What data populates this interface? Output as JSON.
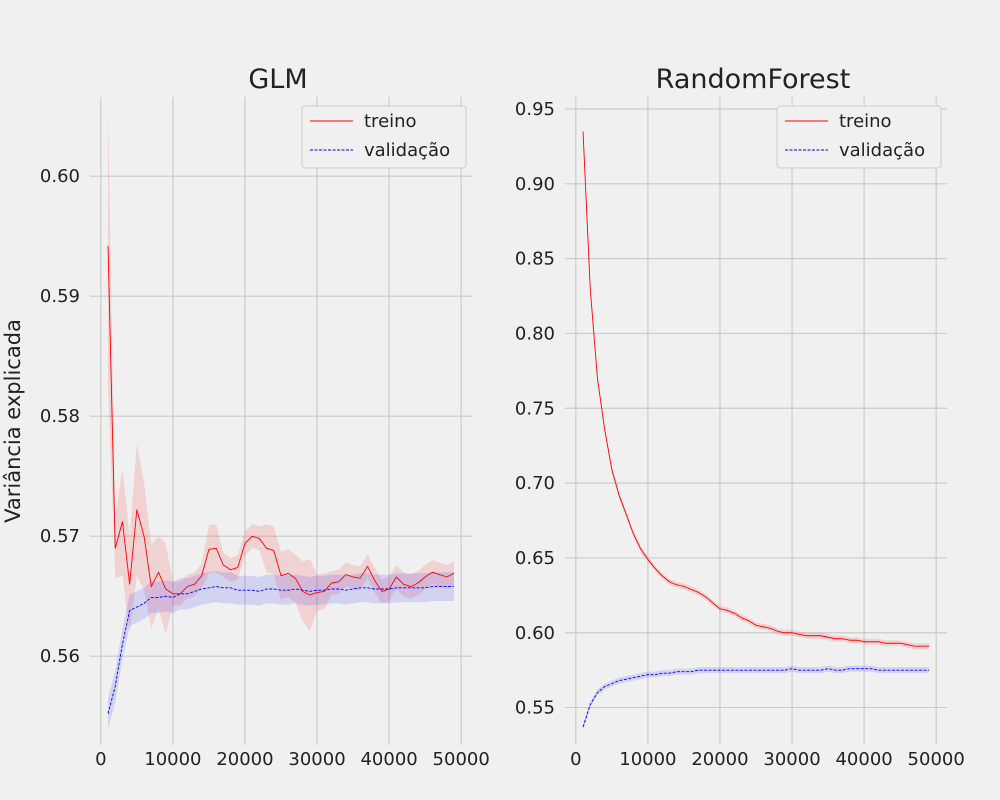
{
  "chart_data": [
    {
      "type": "line",
      "title": "GLM",
      "xlabel": "",
      "ylabel": "Variância explicada",
      "xlim": [
        -1500,
        51500
      ],
      "ylim": [
        0.5526,
        0.6066
      ],
      "xticks": [
        0,
        10000,
        20000,
        30000,
        40000,
        50000
      ],
      "yticks": [
        0.56,
        0.57,
        0.58,
        0.59,
        0.6
      ],
      "ytick_labels": [
        "0.56",
        "0.57",
        "0.58",
        "0.59",
        "0.60"
      ],
      "grid": true,
      "legend_position": "top-right",
      "x": [
        1000,
        2000,
        3000,
        4000,
        5000,
        6000,
        7000,
        8000,
        9000,
        10000,
        11000,
        12000,
        13000,
        14000,
        15000,
        16000,
        17000,
        18000,
        19000,
        20000,
        21000,
        22000,
        23000,
        24000,
        25000,
        26000,
        27000,
        28000,
        29000,
        30000,
        31000,
        32000,
        33000,
        34000,
        35000,
        36000,
        37000,
        38000,
        39000,
        40000,
        41000,
        42000,
        43000,
        44000,
        45000,
        46000,
        47000,
        48000,
        49000
      ],
      "series": [
        {
          "name": "treino",
          "color": "#ff0000",
          "style": "solid",
          "values": [
            0.5942,
            0.569,
            0.5712,
            0.566,
            0.5722,
            0.57,
            0.5658,
            0.567,
            0.5656,
            0.5652,
            0.5652,
            0.5658,
            0.566,
            0.5667,
            0.5689,
            0.569,
            0.5676,
            0.5672,
            0.5674,
            0.5694,
            0.57,
            0.5698,
            0.569,
            0.5688,
            0.5667,
            0.5669,
            0.5665,
            0.5654,
            0.5651,
            0.5653,
            0.5654,
            0.5661,
            0.5662,
            0.5668,
            0.5666,
            0.5665,
            0.5675,
            0.5663,
            0.5654,
            0.5656,
            0.5666,
            0.566,
            0.5658,
            0.5661,
            0.5666,
            0.567,
            0.5668,
            0.5666,
            0.5669
          ],
          "band_half_width": [
            0.0115,
            0.0025,
            0.0045,
            0.004,
            0.0055,
            0.0045,
            0.0035,
            0.003,
            0.0038,
            0.001,
            0.001,
            0.001,
            0.001,
            0.001,
            0.002,
            0.002,
            0.001,
            0.001,
            0.001,
            0.001,
            0.001,
            0.001,
            0.002,
            0.002,
            0.002,
            0.002,
            0.002,
            0.0025,
            0.003,
            0.0015,
            0.0015,
            0.001,
            0.001,
            0.001,
            0.001,
            0.001,
            0.001,
            0.001,
            0.001,
            0.001,
            0.001,
            0.001,
            0.001,
            0.001,
            0.001,
            0.001,
            0.001,
            0.001,
            0.001
          ]
        },
        {
          "name": "validação",
          "color": "#0000ff",
          "style": "dashed",
          "values": [
            0.5552,
            0.5575,
            0.561,
            0.5638,
            0.5641,
            0.5644,
            0.5649,
            0.5649,
            0.565,
            0.5649,
            0.5652,
            0.5652,
            0.5654,
            0.5656,
            0.5657,
            0.5658,
            0.5657,
            0.5657,
            0.5655,
            0.5655,
            0.5655,
            0.5654,
            0.5656,
            0.5656,
            0.5655,
            0.5655,
            0.5656,
            0.5655,
            0.5654,
            0.5655,
            0.5655,
            0.5656,
            0.5656,
            0.5655,
            0.5656,
            0.5657,
            0.5657,
            0.5656,
            0.5656,
            0.5656,
            0.5657,
            0.5657,
            0.5657,
            0.5657,
            0.5657,
            0.5658,
            0.5658,
            0.5658,
            0.5658
          ],
          "band_half_width": [
            0.0013,
            0.0013,
            0.0013,
            0.0013,
            0.0013,
            0.0013,
            0.0013,
            0.0013,
            0.0013,
            0.0013,
            0.0013,
            0.0013,
            0.0013,
            0.0013,
            0.0013,
            0.0013,
            0.0013,
            0.0013,
            0.0012,
            0.0012,
            0.0012,
            0.0012,
            0.0012,
            0.0012,
            0.0012,
            0.0012,
            0.0012,
            0.0012,
            0.0012,
            0.0012,
            0.0012,
            0.0012,
            0.0012,
            0.0012,
            0.0012,
            0.0012,
            0.0012,
            0.0012,
            0.0012,
            0.0012,
            0.0012,
            0.0012,
            0.0012,
            0.0012,
            0.0012,
            0.0012,
            0.0012,
            0.0012,
            0.0012
          ]
        }
      ]
    },
    {
      "type": "line",
      "title": "RandomForest",
      "xlabel": "",
      "ylabel": "",
      "xlim": [
        -1500,
        51500
      ],
      "ylim": [
        0.525,
        0.958
      ],
      "xticks": [
        0,
        10000,
        20000,
        30000,
        40000,
        50000
      ],
      "yticks": [
        0.55,
        0.6,
        0.65,
        0.7,
        0.75,
        0.8,
        0.85,
        0.9,
        0.95
      ],
      "ytick_labels": [
        "0.55",
        "0.60",
        "0.65",
        "0.70",
        "0.75",
        "0.80",
        "0.85",
        "0.90",
        "0.95"
      ],
      "grid": true,
      "legend_position": "top-right",
      "x": [
        1000,
        2000,
        3000,
        4000,
        5000,
        6000,
        7000,
        8000,
        9000,
        10000,
        11000,
        12000,
        13000,
        14000,
        15000,
        16000,
        17000,
        18000,
        19000,
        20000,
        21000,
        22000,
        23000,
        24000,
        25000,
        26000,
        27000,
        28000,
        29000,
        30000,
        31000,
        32000,
        33000,
        34000,
        35000,
        36000,
        37000,
        38000,
        39000,
        40000,
        41000,
        42000,
        43000,
        44000,
        45000,
        46000,
        47000,
        48000,
        49000
      ],
      "series": [
        {
          "name": "treino",
          "color": "#ff0000",
          "style": "solid",
          "values": [
            0.935,
            0.83,
            0.77,
            0.736,
            0.709,
            0.692,
            0.679,
            0.666,
            0.656,
            0.649,
            0.643,
            0.638,
            0.634,
            0.632,
            0.631,
            0.629,
            0.627,
            0.624,
            0.62,
            0.616,
            0.615,
            0.613,
            0.61,
            0.608,
            0.605,
            0.604,
            0.603,
            0.601,
            0.6,
            0.6,
            0.599,
            0.598,
            0.598,
            0.598,
            0.597,
            0.596,
            0.596,
            0.595,
            0.595,
            0.594,
            0.594,
            0.594,
            0.593,
            0.593,
            0.593,
            0.592,
            0.591,
            0.591,
            0.591
          ],
          "band_half_width": [
            0.002,
            0.002,
            0.002,
            0.002,
            0.002,
            0.002,
            0.002,
            0.002,
            0.002,
            0.002,
            0.002,
            0.002,
            0.002,
            0.002,
            0.002,
            0.002,
            0.002,
            0.002,
            0.002,
            0.002,
            0.002,
            0.002,
            0.002,
            0.002,
            0.002,
            0.002,
            0.002,
            0.002,
            0.002,
            0.002,
            0.002,
            0.002,
            0.002,
            0.002,
            0.002,
            0.002,
            0.002,
            0.002,
            0.002,
            0.002,
            0.002,
            0.002,
            0.002,
            0.002,
            0.002,
            0.002,
            0.002,
            0.002,
            0.002
          ]
        },
        {
          "name": "validação",
          "color": "#0000ff",
          "style": "dashed",
          "values": [
            0.537,
            0.552,
            0.56,
            0.564,
            0.566,
            0.568,
            0.569,
            0.57,
            0.571,
            0.572,
            0.572,
            0.573,
            0.573,
            0.574,
            0.574,
            0.574,
            0.575,
            0.575,
            0.575,
            0.575,
            0.575,
            0.575,
            0.575,
            0.575,
            0.575,
            0.575,
            0.575,
            0.575,
            0.575,
            0.576,
            0.575,
            0.575,
            0.575,
            0.575,
            0.576,
            0.575,
            0.575,
            0.576,
            0.576,
            0.576,
            0.576,
            0.575,
            0.575,
            0.575,
            0.575,
            0.575,
            0.575,
            0.575,
            0.575
          ],
          "band_half_width": [
            0.002,
            0.002,
            0.002,
            0.002,
            0.002,
            0.002,
            0.002,
            0.002,
            0.002,
            0.002,
            0.002,
            0.002,
            0.002,
            0.002,
            0.002,
            0.002,
            0.002,
            0.002,
            0.002,
            0.002,
            0.002,
            0.002,
            0.002,
            0.002,
            0.002,
            0.002,
            0.002,
            0.002,
            0.002,
            0.002,
            0.002,
            0.002,
            0.002,
            0.002,
            0.002,
            0.002,
            0.002,
            0.002,
            0.002,
            0.002,
            0.002,
            0.002,
            0.002,
            0.002,
            0.002,
            0.002,
            0.002,
            0.002,
            0.002
          ]
        }
      ]
    }
  ]
}
